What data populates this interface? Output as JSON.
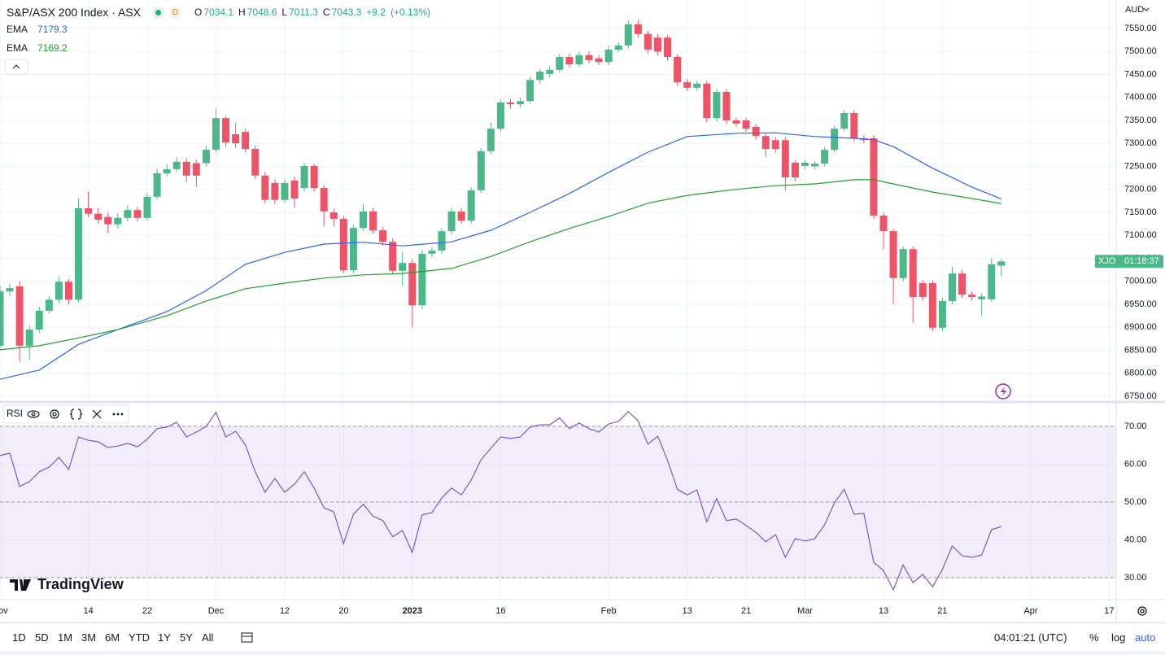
{
  "header": {
    "interval": "D",
    "ohlc_letters": [
      "O",
      "H",
      "L",
      "C"
    ],
    "change": "+9.2",
    "change_pct": "(+0.13%)",
    "currency": "AUD",
    "price_tag": {
      "symbol": "XJO",
      "countdown": "01:18:37"
    },
    "brand": "TradingView"
  },
  "chart_data": [
    {
      "type": "candlestick",
      "title": "S&P/ASX 200 Index · ASX",
      "up_color": "#4cb88a",
      "down_color": "#ee5468",
      "open": [
        6860,
        6978,
        6989,
        6860,
        6895,
        6936,
        6960,
        6999,
        6960,
        7159,
        7147,
        7140,
        7124,
        7138,
        7155,
        7138,
        7184,
        7235,
        7244,
        7260,
        7257,
        7257,
        7286,
        7355,
        7320,
        7325,
        7288,
        7230,
        7214,
        7177,
        7219,
        7203,
        7251,
        7203,
        7150,
        7136,
        7024,
        7116,
        7152,
        7111,
        7086,
        7023,
        7040,
        6948,
        7060,
        7067,
        7109,
        7152,
        7132,
        7198,
        7283,
        7332,
        7389,
        7385,
        7392,
        7438,
        7451,
        7460,
        7488,
        7472,
        7492,
        7485,
        7477,
        7504,
        7513,
        7559,
        7538,
        7530,
        7530,
        7488,
        7433,
        7421,
        7430,
        7355,
        7412,
        7350,
        7350,
        7336,
        7316,
        7307,
        7307,
        7258,
        7251,
        7250,
        7256,
        7286,
        7332,
        7366,
        7311,
        7311,
        7143,
        7109,
        7007,
        7070,
        6996,
        6996,
        6899,
        6957,
        7017,
        6971,
        6961,
        6961,
        7034.1
      ],
      "high": [
        6990,
        6995,
        7000,
        6905,
        6945,
        6968,
        7010,
        7005,
        7180,
        7195,
        7160,
        7150,
        7148,
        7165,
        7162,
        7192,
        7245,
        7255,
        7270,
        7268,
        7265,
        7295,
        7375,
        7360,
        7345,
        7332,
        7295,
        7238,
        7222,
        7222,
        7228,
        7258,
        7256,
        7210,
        7158,
        7142,
        7122,
        7168,
        7160,
        7118,
        7094,
        7065,
        7048,
        7068,
        7075,
        7116,
        7160,
        7160,
        7205,
        7290,
        7345,
        7396,
        7396,
        7400,
        7445,
        7462,
        7468,
        7495,
        7496,
        7500,
        7500,
        7492,
        7512,
        7520,
        7568,
        7570,
        7545,
        7538,
        7536,
        7494,
        7440,
        7436,
        7436,
        7418,
        7418,
        7356,
        7356,
        7342,
        7322,
        7314,
        7314,
        7264,
        7264,
        7262,
        7292,
        7338,
        7372,
        7372,
        7318,
        7318,
        7150,
        7114,
        7076,
        7076,
        7002,
        7002,
        6964,
        7032,
        7024,
        6978,
        6974,
        7050,
        7048.6
      ],
      "low": [
        6850,
        6968,
        6825,
        6830,
        6888,
        6930,
        6952,
        6950,
        6955,
        7140,
        7125,
        7105,
        7115,
        7130,
        7130,
        7132,
        7178,
        7228,
        7238,
        7215,
        7205,
        7250,
        7280,
        7292,
        7290,
        7280,
        7222,
        7170,
        7168,
        7170,
        7160,
        7196,
        7195,
        7120,
        7120,
        7018,
        7018,
        7110,
        7104,
        7078,
        7015,
        6990,
        6900,
        6940,
        7052,
        7060,
        7102,
        7125,
        7126,
        7192,
        7276,
        7326,
        7376,
        7378,
        7386,
        7430,
        7444,
        7454,
        7465,
        7466,
        7474,
        7470,
        7470,
        7498,
        7506,
        7530,
        7496,
        7492,
        7480,
        7425,
        7414,
        7414,
        7346,
        7348,
        7342,
        7336,
        7325,
        7308,
        7270,
        7280,
        7198,
        7218,
        7244,
        7243,
        7250,
        7280,
        7326,
        7304,
        7300,
        7136,
        7070,
        6950,
        7000,
        6910,
        6958,
        6892,
        6892,
        6950,
        6964,
        6958,
        6925,
        6955,
        7011.3
      ],
      "close": [
        6978,
        6985,
        6860,
        6895,
        6936,
        6960,
        6999,
        6960,
        7159,
        7147,
        7134,
        7124,
        7138,
        7155,
        7138,
        7184,
        7235,
        7244,
        7260,
        7230,
        7230,
        7286,
        7355,
        7302,
        7300,
        7288,
        7230,
        7177,
        7177,
        7214,
        7180,
        7251,
        7203,
        7152,
        7136,
        7024,
        7116,
        7152,
        7111,
        7086,
        7023,
        7040,
        6948,
        7060,
        7067,
        7109,
        7152,
        7132,
        7198,
        7283,
        7332,
        7389,
        7385,
        7392,
        7438,
        7456,
        7460,
        7488,
        7472,
        7492,
        7481,
        7477,
        7504,
        7513,
        7559,
        7538,
        7504,
        7500,
        7488,
        7433,
        7421,
        7430,
        7355,
        7412,
        7350,
        7343,
        7332,
        7316,
        7288,
        7288,
        7226,
        7226,
        7258,
        7256,
        7286,
        7332,
        7366,
        7311,
        7307,
        7143,
        7109,
        7007,
        7070,
        6966,
        6966,
        6899,
        6957,
        7017,
        6971,
        6966,
        6967,
        7037,
        7043.3
      ],
      "series": [
        {
          "name": "EMA",
          "color": "#2962ff",
          "x": [
            0,
            4,
            8,
            12,
            17,
            21,
            25,
            29,
            33,
            37,
            41,
            46,
            50,
            54,
            58,
            62,
            66,
            70,
            75,
            79,
            83,
            87,
            89,
            91,
            95,
            99,
            102
          ],
          "values": [
            6787,
            6807,
            6863,
            6895,
            6934,
            6980,
            7037,
            7063,
            7081,
            7085,
            7077,
            7086,
            7111,
            7150,
            7191,
            7237,
            7281,
            7315,
            7322,
            7323,
            7315,
            7311,
            7308,
            7293,
            7246,
            7205,
            7179.3
          ]
        },
        {
          "name": "EMA",
          "color": "#22a02e",
          "x": [
            0,
            4,
            8,
            12,
            17,
            21,
            25,
            29,
            33,
            37,
            41,
            46,
            50,
            54,
            58,
            62,
            66,
            70,
            75,
            79,
            83,
            87,
            89,
            91,
            95,
            99,
            102
          ],
          "values": [
            6851,
            6860,
            6877,
            6895,
            6925,
            6957,
            6984,
            6996,
            7007,
            7014,
            7017,
            7028,
            7054,
            7086,
            7115,
            7141,
            7170,
            7187,
            7200,
            7208,
            7212,
            7221,
            7221,
            7212,
            7194,
            7180,
            7169.2
          ]
        }
      ],
      "xlim": [
        0,
        113.7
      ],
      "xticks": [
        {
          "value": 0,
          "label": "Nov"
        },
        {
          "value": 9,
          "label": "14"
        },
        {
          "value": 15,
          "label": "22"
        },
        {
          "value": 22,
          "label": "Dec"
        },
        {
          "value": 29,
          "label": "12"
        },
        {
          "value": 35,
          "label": "20"
        },
        {
          "value": 42,
          "label": "2023"
        },
        {
          "value": 51,
          "label": "16"
        },
        {
          "value": 62,
          "label": "Feb"
        },
        {
          "value": 70,
          "label": "13"
        },
        {
          "value": 76,
          "label": "21"
        },
        {
          "value": 82,
          "label": "Mar"
        },
        {
          "value": 90,
          "label": "13"
        },
        {
          "value": 96,
          "label": "21"
        },
        {
          "value": 105,
          "label": "Apr"
        },
        {
          "value": 113,
          "label": "17"
        }
      ],
      "ylim": [
        6739.4,
        7611.9
      ],
      "yticks": [
        {
          "value": 6750,
          "label": "6750.00"
        },
        {
          "value": 6800,
          "label": "6800.00"
        },
        {
          "value": 6850,
          "label": "6850.00"
        },
        {
          "value": 6900,
          "label": "6900.00"
        },
        {
          "value": 6950,
          "label": "6950.00"
        },
        {
          "value": 7000,
          "label": "7000.00"
        },
        {
          "value": 7050,
          "label": "7050.00"
        },
        {
          "value": 7100,
          "label": "7100.00"
        },
        {
          "value": 7150,
          "label": "7150.00"
        },
        {
          "value": 7200,
          "label": "7200.00"
        },
        {
          "value": 7250,
          "label": "7250.00"
        },
        {
          "value": 7300,
          "label": "7300.00"
        },
        {
          "value": 7350,
          "label": "7350.00"
        },
        {
          "value": 7400,
          "label": "7400.00"
        },
        {
          "value": 7450,
          "label": "7450.00"
        },
        {
          "value": 7500,
          "label": "7500.00"
        },
        {
          "value": 7550,
          "label": "7550.00"
        }
      ],
      "grid": true
    },
    {
      "type": "line",
      "title": "RSI",
      "color": "#7e57c2",
      "values": [
        62.3,
        62.9,
        54.1,
        55.4,
        58.0,
        59.2,
        61.8,
        58.6,
        67.2,
        66.3,
        65.9,
        64.4,
        64.8,
        65.5,
        64.6,
        66.6,
        69.4,
        69.8,
        71.1,
        67.2,
        68.5,
        70.0,
        73.7,
        67.2,
        68.7,
        65.1,
        58.0,
        52.6,
        56.2,
        52.6,
        54.7,
        58.0,
        53.7,
        48.5,
        47.4,
        39.0,
        46.8,
        49.4,
        46.3,
        45.1,
        40.8,
        42.5,
        36.7,
        46.6,
        47.2,
        51.1,
        53.7,
        51.9,
        55.8,
        61.2,
        64.2,
        67.2,
        66.8,
        67.2,
        69.8,
        70.4,
        70.4,
        72.2,
        69.4,
        70.9,
        69.4,
        68.5,
        70.6,
        71.3,
        73.9,
        71.5,
        65.3,
        67.4,
        61.0,
        53.4,
        51.9,
        53.2,
        44.8,
        50.9,
        45.1,
        45.5,
        43.8,
        42.0,
        39.5,
        41.4,
        35.4,
        40.3,
        39.7,
        40.3,
        44.0,
        49.8,
        53.4,
        46.8,
        47.0,
        34.1,
        31.9,
        26.8,
        33.4,
        28.7,
        30.9,
        27.6,
        32.2,
        38.4,
        35.8,
        35.4,
        36.0,
        42.7,
        43.5
      ],
      "ylim": [
        24.2,
        75.8
      ],
      "yticks": [
        {
          "value": 30,
          "label": "30.00"
        },
        {
          "value": 40,
          "label": "40.00"
        },
        {
          "value": 50,
          "label": "50.00"
        },
        {
          "value": 60,
          "label": "60.00"
        },
        {
          "value": 70,
          "label": "70.00"
        }
      ],
      "band": [
        30,
        70
      ],
      "dashed": [
        30,
        50,
        70
      ],
      "grid": true
    }
  ],
  "toolbar": {
    "ranges": [
      "1D",
      "5D",
      "1M",
      "3M",
      "6M",
      "YTD",
      "1Y",
      "5Y",
      "All"
    ],
    "clock": "04:01:21 (UTC)",
    "options": [
      "%",
      "log",
      "auto"
    ]
  }
}
